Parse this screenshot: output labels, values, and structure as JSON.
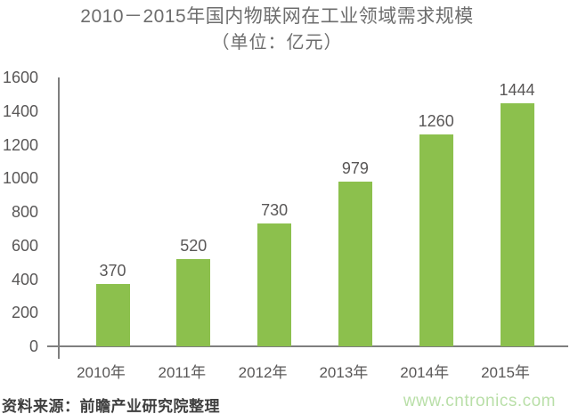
{
  "title": {
    "line1": "2010－2015年国内物联网在工业领域需求规模",
    "line2": "（单位：亿元）"
  },
  "chart_data": {
    "type": "bar",
    "title": "2010－2015年国内物联网在工业领域需求规模",
    "subtitle": "（单位：亿元）",
    "unit": "亿元",
    "categories": [
      "2010年",
      "2011年",
      "2012年",
      "2013年",
      "2014年",
      "2015年"
    ],
    "values": [
      370,
      520,
      730,
      979,
      1260,
      1444
    ],
    "value_labels_shown": true,
    "ylim": [
      0,
      1600
    ],
    "yticks": [
      0,
      200,
      400,
      600,
      800,
      1000,
      1200,
      1400,
      1600
    ],
    "grid": false,
    "legend": "none",
    "bar_color": "#8cc04d",
    "axis_color": "#7f7f7f",
    "tick_label_color": "#595757"
  },
  "footer": {
    "source": "资料来源：前瞻产业研究院整理",
    "website": "www.cntronics.com",
    "website_color": "#b9dfa8"
  }
}
